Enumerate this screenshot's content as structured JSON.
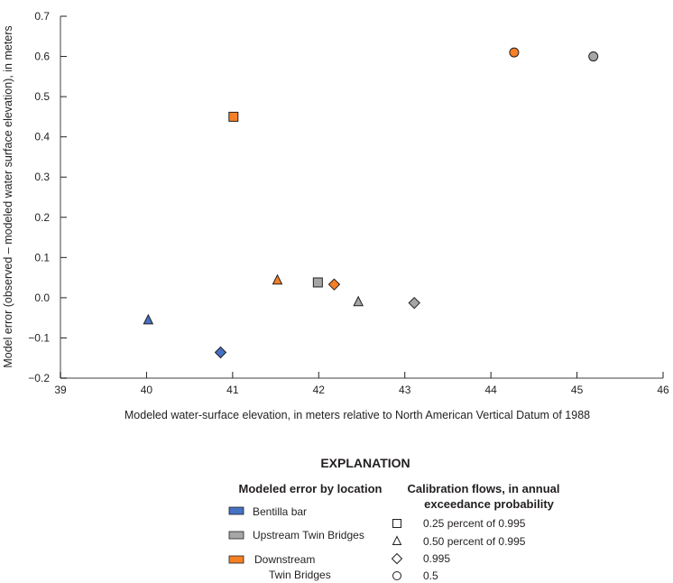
{
  "chart_data": {
    "type": "scatter",
    "xlabel": "Modeled water-surface elevation, in meters relative to North American Vertical Datum of 1988",
    "ylabel": "Model error (observed – modeled water surface elevation), in meters",
    "xlim": [
      39,
      46
    ],
    "ylim": [
      -0.2,
      0.7
    ],
    "xticks": [
      "39",
      "40",
      "41",
      "42",
      "43",
      "44",
      "45",
      "46"
    ],
    "yticks": [
      "−0.2",
      "−0.1",
      "0.0",
      "0.1",
      "0.2",
      "0.3",
      "0.4",
      "0.5",
      "0.6",
      "0.7"
    ],
    "grid": false,
    "colors": {
      "Bentilla bar": "#4472c4",
      "Upstream Twin Bridges": "#a6a6a6",
      "Downstream Twin Bridges": "#f58025"
    },
    "points": [
      {
        "location": "Bentilla bar",
        "flow": "0.50 percent of 0.995",
        "shape": "triangle",
        "x": 40.02,
        "y": -0.056
      },
      {
        "location": "Bentilla bar",
        "flow": "0.995",
        "shape": "diamond",
        "x": 40.86,
        "y": -0.136
      },
      {
        "location": "Downstream Twin Bridges",
        "flow": "0.25 percent of 0.995",
        "shape": "square",
        "x": 41.01,
        "y": 0.45
      },
      {
        "location": "Downstream Twin Bridges",
        "flow": "0.50 percent of 0.995",
        "shape": "triangle",
        "x": 41.52,
        "y": 0.043
      },
      {
        "location": "Upstream Twin Bridges",
        "flow": "0.25 percent of 0.995",
        "shape": "square",
        "x": 41.99,
        "y": 0.038
      },
      {
        "location": "Downstream Twin Bridges",
        "flow": "0.995",
        "shape": "diamond",
        "x": 42.18,
        "y": 0.033
      },
      {
        "location": "Upstream Twin Bridges",
        "flow": "0.50 percent of 0.995",
        "shape": "triangle",
        "x": 42.46,
        "y": -0.011
      },
      {
        "location": "Upstream Twin Bridges",
        "flow": "0.995",
        "shape": "diamond",
        "x": 43.11,
        "y": -0.013
      },
      {
        "location": "Downstream Twin Bridges",
        "flow": "0.5",
        "shape": "circle",
        "x": 44.27,
        "y": 0.61
      },
      {
        "location": "Upstream Twin Bridges",
        "flow": "0.5",
        "shape": "circle",
        "x": 45.19,
        "y": 0.6
      }
    ]
  },
  "legend": {
    "title": "EXPLANATION",
    "location_header": "Modeled error by location",
    "locations": [
      {
        "label": "Bentilla bar",
        "color": "#4472c4"
      },
      {
        "label": "Upstream Twin Bridges",
        "color": "#a6a6a6"
      },
      {
        "label_line1": "Downstream",
        "label_line2": "Twin Bridges",
        "color": "#f58025"
      }
    ],
    "flow_header_line1": "Calibration flows, in annual",
    "flow_header_line2": "exceedance probability",
    "flows": [
      {
        "label": "0.25 percent of 0.995",
        "shape": "square"
      },
      {
        "label": "0.50 percent of 0.995",
        "shape": "triangle"
      },
      {
        "label": "0.995",
        "shape": "diamond"
      },
      {
        "label": "0.5",
        "shape": "circle"
      }
    ]
  }
}
